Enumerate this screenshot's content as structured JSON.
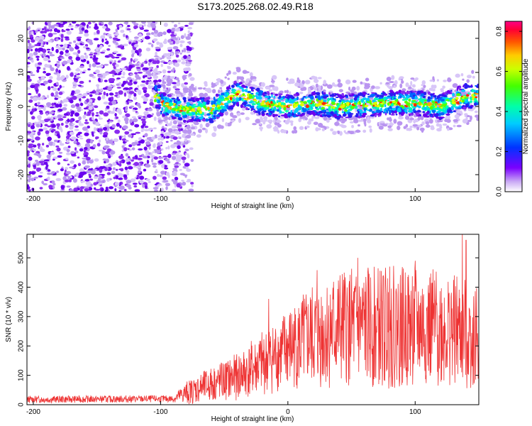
{
  "page_title": "S173.2025.268.02.49.R18",
  "chart_data": [
    {
      "type": "heatmap",
      "name": "spectrogram",
      "xlabel": "Height of straight line (km)",
      "ylabel": "Frequency (Hz)",
      "xlim": [
        -205,
        150
      ],
      "ylim": [
        -25,
        25
      ],
      "x_ticks": [
        -200,
        -100,
        0,
        100
      ],
      "y_ticks": [
        20,
        10,
        0,
        -10,
        -20
      ],
      "colorbar": {
        "label": "Normalized spectral amplitude",
        "range": [
          0.0,
          0.85
        ],
        "ticks": [
          0.0,
          0.2,
          0.4,
          0.6,
          0.8
        ],
        "tick_labels": [
          "0.0",
          "0.2",
          "0.4",
          "0.6",
          "0.8"
        ]
      },
      "signal_band_center_hz": [
        {
          "x": -100,
          "y": 0.5
        },
        {
          "x": -80,
          "y": -1
        },
        {
          "x": -60,
          "y": -1
        },
        {
          "x": -40,
          "y": 4
        },
        {
          "x": -20,
          "y": 1
        },
        {
          "x": 0,
          "y": 0
        },
        {
          "x": 20,
          "y": 1
        },
        {
          "x": 40,
          "y": 0
        },
        {
          "x": 60,
          "y": 0.5
        },
        {
          "x": 80,
          "y": 1
        },
        {
          "x": 100,
          "y": 1
        },
        {
          "x": 120,
          "y": 0
        },
        {
          "x": 140,
          "y": 3
        },
        {
          "x": 150,
          "y": 3
        }
      ],
      "noise_region_km": [
        -205,
        -85
      ]
    },
    {
      "type": "line",
      "name": "snr",
      "xlabel": "Height of straight line (km)",
      "ylabel": "SNR (10 * v/v)",
      "xlim": [
        -205,
        150
      ],
      "ylim": [
        0,
        580
      ],
      "x_ticks": [
        -200,
        -100,
        0,
        100
      ],
      "y_ticks": [
        0,
        100,
        200,
        300,
        400,
        500
      ],
      "color": "#ee3333",
      "envelope": [
        {
          "x": -205,
          "mean": 18,
          "spread": 12
        },
        {
          "x": -90,
          "mean": 20,
          "spread": 12
        },
        {
          "x": -80,
          "mean": 40,
          "spread": 40
        },
        {
          "x": -60,
          "mean": 70,
          "spread": 60
        },
        {
          "x": -40,
          "mean": 95,
          "spread": 80
        },
        {
          "x": -20,
          "mean": 140,
          "spread": 110
        },
        {
          "x": 0,
          "mean": 190,
          "spread": 140
        },
        {
          "x": 20,
          "mean": 230,
          "spread": 180
        },
        {
          "x": 40,
          "mean": 260,
          "spread": 200
        },
        {
          "x": 80,
          "mean": 265,
          "spread": 210
        },
        {
          "x": 120,
          "mean": 260,
          "spread": 200
        },
        {
          "x": 150,
          "mean": 230,
          "spread": 180
        }
      ],
      "peaks": [
        {
          "x": -15,
          "y": 360
        },
        {
          "x": 23,
          "y": 458
        },
        {
          "x": 55,
          "y": 500
        },
        {
          "x": 80,
          "y": 470
        },
        {
          "x": 100,
          "y": 490
        },
        {
          "x": 137,
          "y": 580
        },
        {
          "x": 140,
          "y": 560
        }
      ]
    }
  ]
}
